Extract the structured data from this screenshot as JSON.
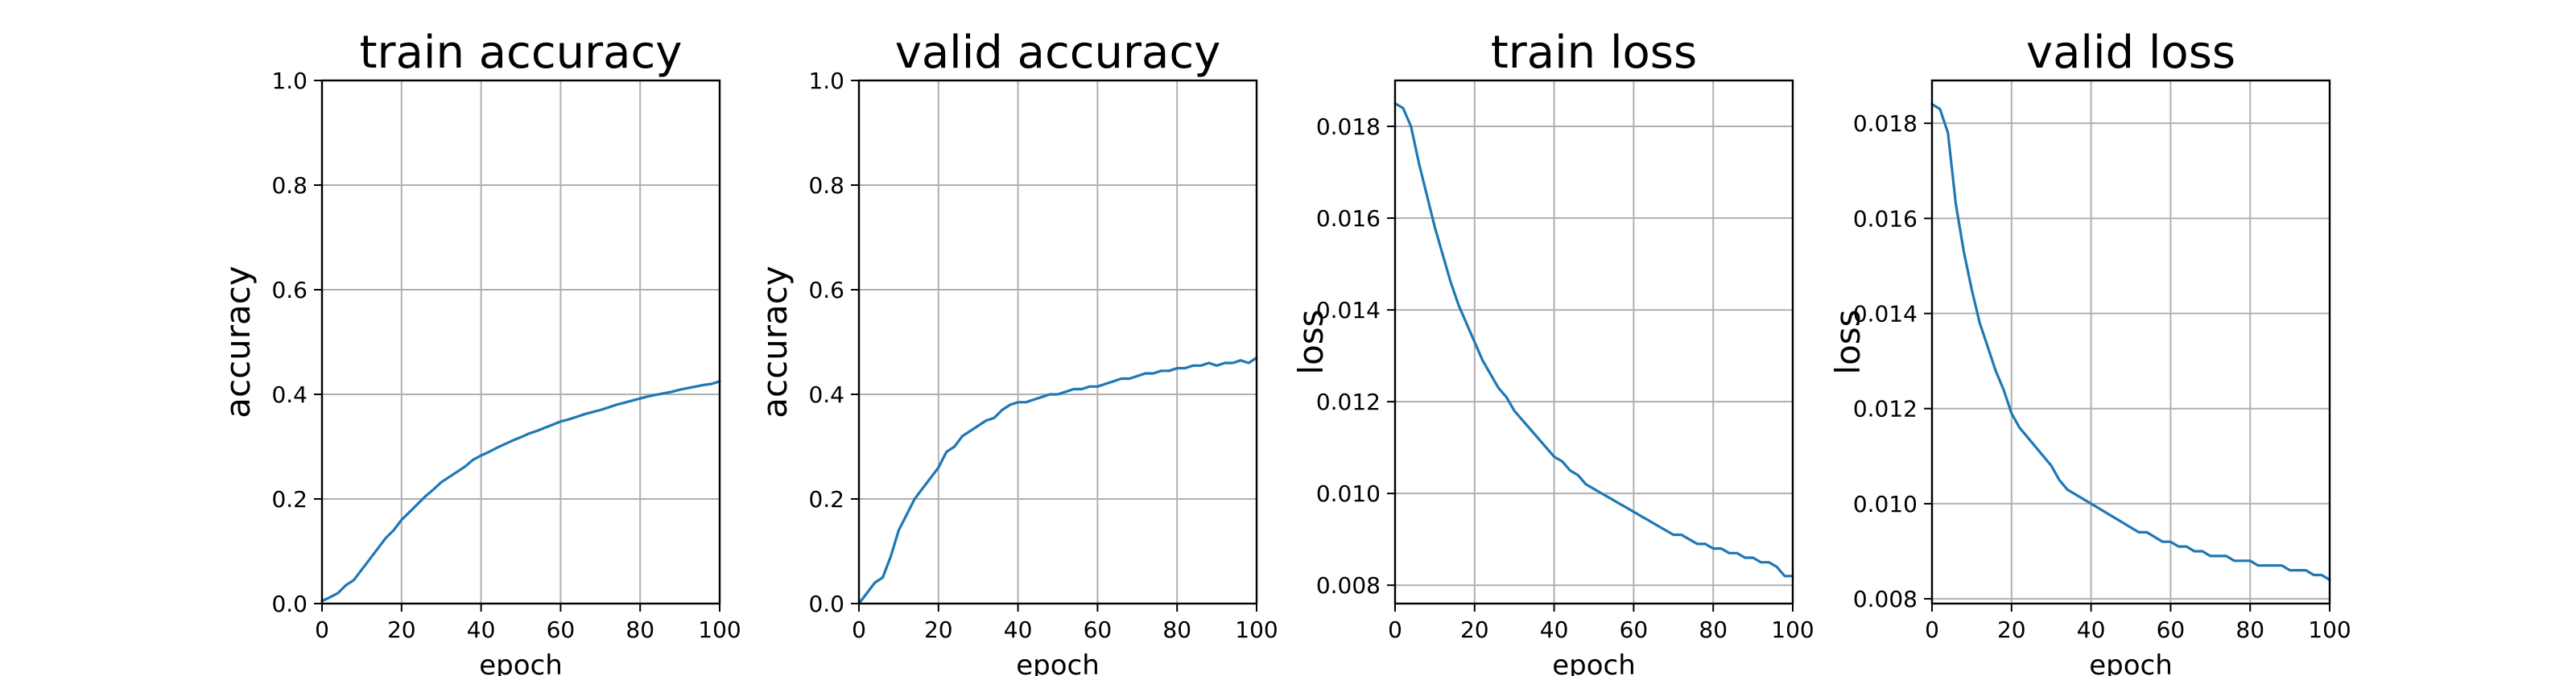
{
  "figure": {
    "background": "#ffffff",
    "line_color": "#1f77b4",
    "grid_color": "#b0b0b0"
  },
  "chart_data": [
    {
      "type": "line",
      "title": "train accuracy",
      "xlabel": "epoch",
      "ylabel": "accuracy",
      "xlim": [
        0,
        100
      ],
      "ylim": [
        0,
        1.0
      ],
      "grid": true,
      "xticks": [
        0,
        20,
        40,
        60,
        80,
        100
      ],
      "yticks": [
        0.0,
        0.2,
        0.4,
        0.6,
        0.8,
        1.0
      ],
      "ytick_labels": [
        "0.0",
        "0.2",
        "0.4",
        "0.6",
        "0.8",
        "1.0"
      ],
      "series": [
        {
          "color": "#1f77b4",
          "x": [
            0,
            2,
            4,
            6,
            8,
            10,
            12,
            14,
            16,
            18,
            20,
            22,
            24,
            26,
            28,
            30,
            32,
            34,
            36,
            38,
            40,
            42,
            44,
            46,
            48,
            50,
            52,
            54,
            56,
            58,
            60,
            62,
            64,
            66,
            68,
            70,
            72,
            74,
            76,
            78,
            80,
            82,
            84,
            86,
            88,
            90,
            92,
            94,
            96,
            98,
            100
          ],
          "y": [
            0.005,
            0.012,
            0.02,
            0.035,
            0.045,
            0.065,
            0.085,
            0.105,
            0.125,
            0.14,
            0.16,
            0.175,
            0.19,
            0.205,
            0.218,
            0.232,
            0.242,
            0.252,
            0.262,
            0.275,
            0.283,
            0.29,
            0.298,
            0.305,
            0.312,
            0.318,
            0.325,
            0.33,
            0.336,
            0.342,
            0.348,
            0.352,
            0.357,
            0.362,
            0.366,
            0.37,
            0.375,
            0.38,
            0.384,
            0.388,
            0.392,
            0.396,
            0.399,
            0.402,
            0.405,
            0.409,
            0.412,
            0.415,
            0.418,
            0.42,
            0.425
          ]
        }
      ]
    },
    {
      "type": "line",
      "title": "valid accuracy",
      "xlabel": "epoch",
      "ylabel": "accuracy",
      "xlim": [
        0,
        100
      ],
      "ylim": [
        0,
        1.0
      ],
      "grid": true,
      "xticks": [
        0,
        20,
        40,
        60,
        80,
        100
      ],
      "yticks": [
        0.0,
        0.2,
        0.4,
        0.6,
        0.8,
        1.0
      ],
      "ytick_labels": [
        "0.0",
        "0.2",
        "0.4",
        "0.6",
        "0.8",
        "1.0"
      ],
      "series": [
        {
          "color": "#1f77b4",
          "x": [
            0,
            2,
            4,
            6,
            8,
            10,
            12,
            14,
            16,
            18,
            20,
            22,
            24,
            26,
            28,
            30,
            32,
            34,
            36,
            38,
            40,
            42,
            44,
            46,
            48,
            50,
            52,
            54,
            56,
            58,
            60,
            62,
            64,
            66,
            68,
            70,
            72,
            74,
            76,
            78,
            80,
            82,
            84,
            86,
            88,
            90,
            92,
            94,
            96,
            98,
            100
          ],
          "y": [
            0.0,
            0.02,
            0.04,
            0.05,
            0.09,
            0.14,
            0.17,
            0.2,
            0.22,
            0.24,
            0.26,
            0.29,
            0.3,
            0.32,
            0.33,
            0.34,
            0.35,
            0.355,
            0.37,
            0.38,
            0.385,
            0.385,
            0.39,
            0.395,
            0.4,
            0.4,
            0.405,
            0.41,
            0.41,
            0.415,
            0.415,
            0.42,
            0.425,
            0.43,
            0.43,
            0.435,
            0.44,
            0.44,
            0.445,
            0.445,
            0.45,
            0.45,
            0.455,
            0.455,
            0.46,
            0.455,
            0.46,
            0.46,
            0.465,
            0.46,
            0.47
          ]
        }
      ]
    },
    {
      "type": "line",
      "title": "train loss",
      "xlabel": "epoch",
      "ylabel": "loss",
      "xlim": [
        0,
        100
      ],
      "ylim": [
        0.0076,
        0.019
      ],
      "grid": true,
      "xticks": [
        0,
        20,
        40,
        60,
        80,
        100
      ],
      "yticks": [
        0.008,
        0.01,
        0.012,
        0.014,
        0.016,
        0.018
      ],
      "ytick_labels": [
        "0.008",
        "0.010",
        "0.012",
        "0.014",
        "0.016",
        "0.018"
      ],
      "series": [
        {
          "color": "#1f77b4",
          "x": [
            0,
            2,
            4,
            6,
            8,
            10,
            12,
            14,
            16,
            18,
            20,
            22,
            24,
            26,
            28,
            30,
            32,
            34,
            36,
            38,
            40,
            42,
            44,
            46,
            48,
            50,
            52,
            54,
            56,
            58,
            60,
            62,
            64,
            66,
            68,
            70,
            72,
            74,
            76,
            78,
            80,
            82,
            84,
            86,
            88,
            90,
            92,
            94,
            96,
            98,
            100
          ],
          "y": [
            0.0185,
            0.0184,
            0.018,
            0.0172,
            0.0165,
            0.0158,
            0.0152,
            0.0146,
            0.0141,
            0.0137,
            0.0133,
            0.0129,
            0.0126,
            0.0123,
            0.0121,
            0.0118,
            0.0116,
            0.0114,
            0.0112,
            0.011,
            0.0108,
            0.0107,
            0.0105,
            0.0104,
            0.0102,
            0.0101,
            0.01,
            0.0099,
            0.0098,
            0.0097,
            0.0096,
            0.0095,
            0.0094,
            0.0093,
            0.0092,
            0.0091,
            0.0091,
            0.009,
            0.0089,
            0.0089,
            0.0088,
            0.0088,
            0.0087,
            0.0087,
            0.0086,
            0.0086,
            0.0085,
            0.0085,
            0.0084,
            0.0082,
            0.0082
          ]
        }
      ]
    },
    {
      "type": "line",
      "title": "valid loss",
      "xlabel": "epoch",
      "ylabel": "loss",
      "xlim": [
        0,
        100
      ],
      "ylim": [
        0.0079,
        0.0189
      ],
      "grid": true,
      "xticks": [
        0,
        20,
        40,
        60,
        80,
        100
      ],
      "yticks": [
        0.008,
        0.01,
        0.012,
        0.014,
        0.016,
        0.018
      ],
      "ytick_labels": [
        "0.008",
        "0.010",
        "0.012",
        "0.014",
        "0.016",
        "0.018"
      ],
      "series": [
        {
          "color": "#1f77b4",
          "x": [
            0,
            2,
            4,
            6,
            8,
            10,
            12,
            14,
            16,
            18,
            20,
            22,
            24,
            26,
            28,
            30,
            32,
            34,
            36,
            38,
            40,
            42,
            44,
            46,
            48,
            50,
            52,
            54,
            56,
            58,
            60,
            62,
            64,
            66,
            68,
            70,
            72,
            74,
            76,
            78,
            80,
            82,
            84,
            86,
            88,
            90,
            92,
            94,
            96,
            98,
            100
          ],
          "y": [
            0.0184,
            0.0183,
            0.0178,
            0.0163,
            0.0153,
            0.0145,
            0.0138,
            0.0133,
            0.0128,
            0.0124,
            0.0119,
            0.0116,
            0.0114,
            0.0112,
            0.011,
            0.0108,
            0.0105,
            0.0103,
            0.0102,
            0.0101,
            0.01,
            0.0099,
            0.0098,
            0.0097,
            0.0096,
            0.0095,
            0.0094,
            0.0094,
            0.0093,
            0.0092,
            0.0092,
            0.0091,
            0.0091,
            0.009,
            0.009,
            0.0089,
            0.0089,
            0.0089,
            0.0088,
            0.0088,
            0.0088,
            0.0087,
            0.0087,
            0.0087,
            0.0087,
            0.0086,
            0.0086,
            0.0086,
            0.0085,
            0.0085,
            0.0084
          ]
        }
      ]
    }
  ]
}
